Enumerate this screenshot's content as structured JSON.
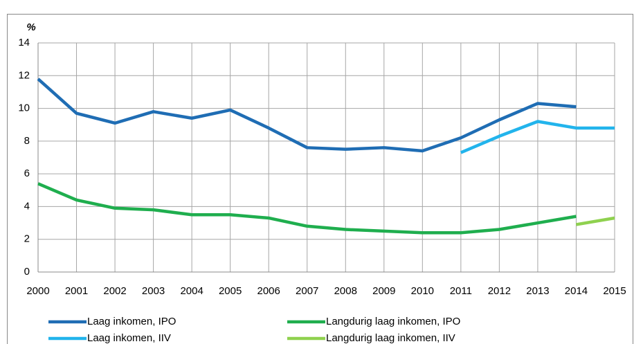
{
  "chart_data": {
    "type": "line",
    "y_label": "%",
    "x": [
      2000,
      2001,
      2002,
      2003,
      2004,
      2005,
      2006,
      2007,
      2008,
      2009,
      2010,
      2011,
      2012,
      2013,
      2014,
      2015
    ],
    "xlim": [
      2000,
      2015
    ],
    "xticks": [
      2000,
      2001,
      2002,
      2003,
      2004,
      2005,
      2006,
      2007,
      2008,
      2009,
      2010,
      2011,
      2012,
      2013,
      2014,
      2015
    ],
    "ylim": [
      0,
      14
    ],
    "yticks": [
      0,
      2,
      4,
      6,
      8,
      10,
      12,
      14
    ],
    "grid": true,
    "legend": "bottom",
    "series": [
      {
        "name": "Laag inkomen, IPO",
        "color": "#1f6db4",
        "values": [
          11.8,
          9.7,
          9.1,
          9.8,
          9.4,
          9.9,
          8.8,
          7.6,
          7.5,
          7.6,
          7.4,
          8.2,
          9.3,
          10.3,
          10.1,
          null
        ]
      },
      {
        "name": "Langdurig laag inkomen, IPO",
        "color": "#1fae4e",
        "values": [
          5.4,
          4.4,
          3.9,
          3.8,
          3.5,
          3.5,
          3.3,
          2.8,
          2.6,
          2.5,
          2.4,
          2.4,
          2.6,
          3.0,
          3.4,
          null
        ]
      },
      {
        "name": "Laag inkomen, IIV",
        "color": "#22b4ec",
        "values": [
          null,
          null,
          null,
          null,
          null,
          null,
          null,
          null,
          null,
          null,
          null,
          7.3,
          8.3,
          9.2,
          8.8,
          8.8
        ]
      },
      {
        "name": "Langdurig laag inkomen, IIV",
        "color": "#8fd14f",
        "values": [
          null,
          null,
          null,
          null,
          null,
          null,
          null,
          null,
          null,
          null,
          null,
          null,
          null,
          null,
          2.9,
          3.3
        ]
      }
    ]
  }
}
